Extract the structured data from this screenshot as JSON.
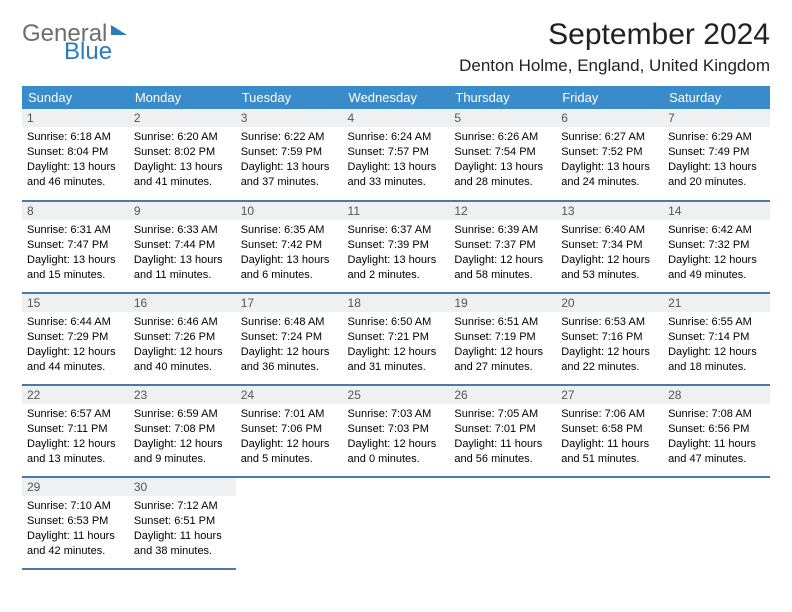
{
  "logo": {
    "line1": "General",
    "line2": "Blue"
  },
  "title": "September 2024",
  "location": "Denton Holme, England, United Kingdom",
  "colors": {
    "header_bg": "#3a8bc9",
    "header_fg": "#ffffff",
    "daynum_bg": "#eef0f1",
    "row_border": "#4a7ba6",
    "logo_gray": "#6e6e6e",
    "logo_blue": "#2d7bbf"
  },
  "weekdays": [
    "Sunday",
    "Monday",
    "Tuesday",
    "Wednesday",
    "Thursday",
    "Friday",
    "Saturday"
  ],
  "cells": [
    {
      "n": "1",
      "sr": "6:18 AM",
      "ss": "8:04 PM",
      "dl": "13 hours and 46 minutes."
    },
    {
      "n": "2",
      "sr": "6:20 AM",
      "ss": "8:02 PM",
      "dl": "13 hours and 41 minutes."
    },
    {
      "n": "3",
      "sr": "6:22 AM",
      "ss": "7:59 PM",
      "dl": "13 hours and 37 minutes."
    },
    {
      "n": "4",
      "sr": "6:24 AM",
      "ss": "7:57 PM",
      "dl": "13 hours and 33 minutes."
    },
    {
      "n": "5",
      "sr": "6:26 AM",
      "ss": "7:54 PM",
      "dl": "13 hours and 28 minutes."
    },
    {
      "n": "6",
      "sr": "6:27 AM",
      "ss": "7:52 PM",
      "dl": "13 hours and 24 minutes."
    },
    {
      "n": "7",
      "sr": "6:29 AM",
      "ss": "7:49 PM",
      "dl": "13 hours and 20 minutes."
    },
    {
      "n": "8",
      "sr": "6:31 AM",
      "ss": "7:47 PM",
      "dl": "13 hours and 15 minutes."
    },
    {
      "n": "9",
      "sr": "6:33 AM",
      "ss": "7:44 PM",
      "dl": "13 hours and 11 minutes."
    },
    {
      "n": "10",
      "sr": "6:35 AM",
      "ss": "7:42 PM",
      "dl": "13 hours and 6 minutes."
    },
    {
      "n": "11",
      "sr": "6:37 AM",
      "ss": "7:39 PM",
      "dl": "13 hours and 2 minutes."
    },
    {
      "n": "12",
      "sr": "6:39 AM",
      "ss": "7:37 PM",
      "dl": "12 hours and 58 minutes."
    },
    {
      "n": "13",
      "sr": "6:40 AM",
      "ss": "7:34 PM",
      "dl": "12 hours and 53 minutes."
    },
    {
      "n": "14",
      "sr": "6:42 AM",
      "ss": "7:32 PM",
      "dl": "12 hours and 49 minutes."
    },
    {
      "n": "15",
      "sr": "6:44 AM",
      "ss": "7:29 PM",
      "dl": "12 hours and 44 minutes."
    },
    {
      "n": "16",
      "sr": "6:46 AM",
      "ss": "7:26 PM",
      "dl": "12 hours and 40 minutes."
    },
    {
      "n": "17",
      "sr": "6:48 AM",
      "ss": "7:24 PM",
      "dl": "12 hours and 36 minutes."
    },
    {
      "n": "18",
      "sr": "6:50 AM",
      "ss": "7:21 PM",
      "dl": "12 hours and 31 minutes."
    },
    {
      "n": "19",
      "sr": "6:51 AM",
      "ss": "7:19 PM",
      "dl": "12 hours and 27 minutes."
    },
    {
      "n": "20",
      "sr": "6:53 AM",
      "ss": "7:16 PM",
      "dl": "12 hours and 22 minutes."
    },
    {
      "n": "21",
      "sr": "6:55 AM",
      "ss": "7:14 PM",
      "dl": "12 hours and 18 minutes."
    },
    {
      "n": "22",
      "sr": "6:57 AM",
      "ss": "7:11 PM",
      "dl": "12 hours and 13 minutes."
    },
    {
      "n": "23",
      "sr": "6:59 AM",
      "ss": "7:08 PM",
      "dl": "12 hours and 9 minutes."
    },
    {
      "n": "24",
      "sr": "7:01 AM",
      "ss": "7:06 PM",
      "dl": "12 hours and 5 minutes."
    },
    {
      "n": "25",
      "sr": "7:03 AM",
      "ss": "7:03 PM",
      "dl": "12 hours and 0 minutes."
    },
    {
      "n": "26",
      "sr": "7:05 AM",
      "ss": "7:01 PM",
      "dl": "11 hours and 56 minutes."
    },
    {
      "n": "27",
      "sr": "7:06 AM",
      "ss": "6:58 PM",
      "dl": "11 hours and 51 minutes."
    },
    {
      "n": "28",
      "sr": "7:08 AM",
      "ss": "6:56 PM",
      "dl": "11 hours and 47 minutes."
    },
    {
      "n": "29",
      "sr": "7:10 AM",
      "ss": "6:53 PM",
      "dl": "11 hours and 42 minutes."
    },
    {
      "n": "30",
      "sr": "7:12 AM",
      "ss": "6:51 PM",
      "dl": "11 hours and 38 minutes."
    },
    null,
    null,
    null,
    null,
    null
  ],
  "labels": {
    "sunrise": "Sunrise:",
    "sunset": "Sunset:",
    "daylight": "Daylight:"
  }
}
